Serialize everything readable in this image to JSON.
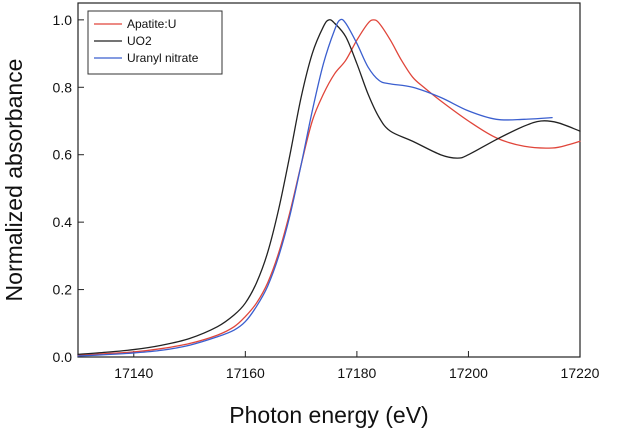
{
  "chart_data": {
    "type": "line",
    "title": "",
    "xlabel": "Photon energy (eV)",
    "ylabel": "Normalized absorbance",
    "xlim": [
      17130,
      17220
    ],
    "ylim": [
      0.0,
      1.05
    ],
    "xticks": [
      17140,
      17160,
      17180,
      17200,
      17220
    ],
    "yticks": [
      0.0,
      0.2,
      0.4,
      0.6,
      0.8,
      1.0
    ],
    "grid": false,
    "legend_position": "top-left",
    "series": [
      {
        "name": "Apatite:U",
        "color": "#e0453a",
        "points": [
          [
            17130,
            0.005
          ],
          [
            17135,
            0.01
          ],
          [
            17140,
            0.015
          ],
          [
            17145,
            0.025
          ],
          [
            17150,
            0.04
          ],
          [
            17155,
            0.065
          ],
          [
            17158,
            0.09
          ],
          [
            17160,
            0.12
          ],
          [
            17162,
            0.16
          ],
          [
            17164,
            0.22
          ],
          [
            17166,
            0.31
          ],
          [
            17168,
            0.43
          ],
          [
            17170,
            0.57
          ],
          [
            17172,
            0.7
          ],
          [
            17174,
            0.78
          ],
          [
            17176,
            0.84
          ],
          [
            17178,
            0.88
          ],
          [
            17180,
            0.94
          ],
          [
            17182,
            0.99
          ],
          [
            17183,
            1.0
          ],
          [
            17184,
            0.99
          ],
          [
            17186,
            0.94
          ],
          [
            17188,
            0.88
          ],
          [
            17190,
            0.83
          ],
          [
            17192,
            0.8
          ],
          [
            17195,
            0.76
          ],
          [
            17200,
            0.7
          ],
          [
            17205,
            0.65
          ],
          [
            17210,
            0.625
          ],
          [
            17215,
            0.62
          ],
          [
            17218,
            0.63
          ],
          [
            17220,
            0.64
          ]
        ]
      },
      {
        "name": "UO2",
        "color": "#222222",
        "points": [
          [
            17130,
            0.008
          ],
          [
            17135,
            0.014
          ],
          [
            17140,
            0.022
          ],
          [
            17145,
            0.035
          ],
          [
            17150,
            0.055
          ],
          [
            17155,
            0.09
          ],
          [
            17158,
            0.125
          ],
          [
            17160,
            0.16
          ],
          [
            17162,
            0.22
          ],
          [
            17164,
            0.31
          ],
          [
            17166,
            0.44
          ],
          [
            17168,
            0.6
          ],
          [
            17170,
            0.77
          ],
          [
            17172,
            0.9
          ],
          [
            17174,
            0.98
          ],
          [
            17175,
            1.0
          ],
          [
            17176,
            0.99
          ],
          [
            17178,
            0.95
          ],
          [
            17180,
            0.87
          ],
          [
            17182,
            0.78
          ],
          [
            17184,
            0.71
          ],
          [
            17186,
            0.67
          ],
          [
            17190,
            0.64
          ],
          [
            17195,
            0.6
          ],
          [
            17198,
            0.59
          ],
          [
            17200,
            0.6
          ],
          [
            17205,
            0.645
          ],
          [
            17210,
            0.685
          ],
          [
            17213,
            0.7
          ],
          [
            17216,
            0.695
          ],
          [
            17220,
            0.67
          ]
        ]
      },
      {
        "name": "Uranyl nitrate",
        "color": "#3b5fcf",
        "points": [
          [
            17130,
            0.003
          ],
          [
            17135,
            0.007
          ],
          [
            17140,
            0.012
          ],
          [
            17145,
            0.02
          ],
          [
            17150,
            0.035
          ],
          [
            17155,
            0.06
          ],
          [
            17158,
            0.08
          ],
          [
            17160,
            0.105
          ],
          [
            17162,
            0.15
          ],
          [
            17164,
            0.21
          ],
          [
            17166,
            0.3
          ],
          [
            17168,
            0.42
          ],
          [
            17170,
            0.57
          ],
          [
            17172,
            0.73
          ],
          [
            17174,
            0.87
          ],
          [
            17176,
            0.97
          ],
          [
            17177,
            1.0
          ],
          [
            17178,
            0.99
          ],
          [
            17180,
            0.93
          ],
          [
            17182,
            0.86
          ],
          [
            17184,
            0.82
          ],
          [
            17186,
            0.81
          ],
          [
            17190,
            0.8
          ],
          [
            17195,
            0.77
          ],
          [
            17200,
            0.73
          ],
          [
            17205,
            0.705
          ],
          [
            17210,
            0.705
          ],
          [
            17215,
            0.71
          ]
        ]
      }
    ]
  }
}
